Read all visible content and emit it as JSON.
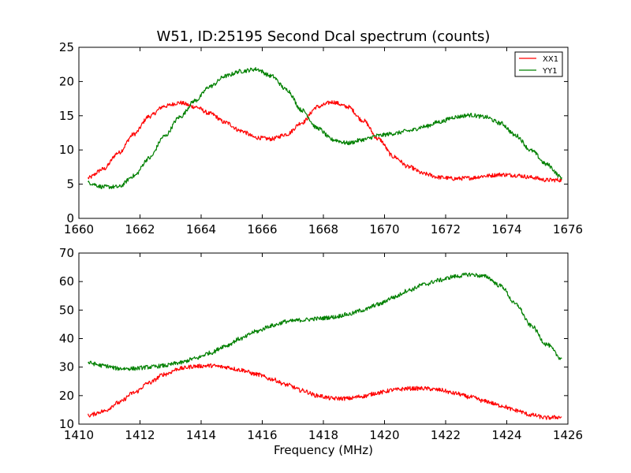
{
  "chart_data": [
    {
      "type": "line",
      "title": "W51, ID:25195 Second Dcal spectrum (counts)",
      "xlabel": "",
      "ylabel": "",
      "xlim": [
        1660,
        1676
      ],
      "ylim": [
        0,
        25
      ],
      "xticks": [
        "1660",
        "1662",
        "1664",
        "1666",
        "1668",
        "1670",
        "1672",
        "1674",
        "1676"
      ],
      "yticks": [
        "0",
        "5",
        "10",
        "15",
        "20",
        "25"
      ],
      "legend": {
        "position": "top-right",
        "entries": [
          "XX1",
          "YY1"
        ]
      },
      "grid": false,
      "series": [
        {
          "name": "XX1",
          "color": "#ff0000",
          "points": [
            [
              1660.3,
              5.9
            ],
            [
              1660.8,
              7.2
            ],
            [
              1661.3,
              9.6
            ],
            [
              1661.8,
              12.3
            ],
            [
              1662.3,
              14.9
            ],
            [
              1662.8,
              16.4
            ],
            [
              1663.3,
              16.9
            ],
            [
              1663.8,
              16.3
            ],
            [
              1664.3,
              15.3
            ],
            [
              1664.8,
              14.0
            ],
            [
              1665.3,
              12.8
            ],
            [
              1665.8,
              11.8
            ],
            [
              1666.3,
              11.6
            ],
            [
              1666.8,
              12.3
            ],
            [
              1667.3,
              14.0
            ],
            [
              1667.8,
              16.3
            ],
            [
              1668.3,
              17.0
            ],
            [
              1668.8,
              16.3
            ],
            [
              1669.3,
              14.3
            ],
            [
              1669.8,
              11.6
            ],
            [
              1670.3,
              9.0
            ],
            [
              1670.8,
              7.5
            ],
            [
              1671.3,
              6.5
            ],
            [
              1671.8,
              6.0
            ],
            [
              1672.3,
              5.8
            ],
            [
              1672.8,
              5.9
            ],
            [
              1673.3,
              6.2
            ],
            [
              1673.8,
              6.4
            ],
            [
              1674.3,
              6.3
            ],
            [
              1674.8,
              6.0
            ],
            [
              1675.3,
              5.6
            ],
            [
              1675.8,
              5.6
            ]
          ]
        },
        {
          "name": "YY1",
          "color": "#008000",
          "points": [
            [
              1660.3,
              5.2
            ],
            [
              1660.8,
              4.6
            ],
            [
              1661.3,
              4.6
            ],
            [
              1661.8,
              6.2
            ],
            [
              1662.3,
              8.8
            ],
            [
              1662.8,
              12.0
            ],
            [
              1663.3,
              14.8
            ],
            [
              1663.8,
              17.2
            ],
            [
              1664.3,
              19.3
            ],
            [
              1664.8,
              20.8
            ],
            [
              1665.3,
              21.5
            ],
            [
              1665.8,
              21.8
            ],
            [
              1666.3,
              20.8
            ],
            [
              1666.8,
              18.8
            ],
            [
              1667.3,
              15.8
            ],
            [
              1667.8,
              13.2
            ],
            [
              1668.3,
              11.5
            ],
            [
              1668.8,
              11.0
            ],
            [
              1669.3,
              11.5
            ],
            [
              1669.8,
              12.1
            ],
            [
              1670.3,
              12.4
            ],
            [
              1670.8,
              12.8
            ],
            [
              1671.3,
              13.4
            ],
            [
              1671.8,
              14.1
            ],
            [
              1672.3,
              14.8
            ],
            [
              1672.8,
              15.1
            ],
            [
              1673.3,
              14.8
            ],
            [
              1673.8,
              13.9
            ],
            [
              1674.3,
              12.1
            ],
            [
              1674.8,
              9.9
            ],
            [
              1675.3,
              7.9
            ],
            [
              1675.8,
              6.0
            ]
          ]
        }
      ]
    },
    {
      "type": "line",
      "title": "",
      "xlabel": "Frequency (MHz)",
      "ylabel": "",
      "xlim": [
        1410,
        1426
      ],
      "ylim": [
        10,
        70
      ],
      "xticks": [
        "1410",
        "1412",
        "1414",
        "1416",
        "1418",
        "1420",
        "1422",
        "1424",
        "1426"
      ],
      "yticks": [
        "10",
        "20",
        "30",
        "40",
        "50",
        "60",
        "70"
      ],
      "grid": false,
      "series": [
        {
          "name": "XX1",
          "color": "#ff0000",
          "points": [
            [
              1410.3,
              13.0
            ],
            [
              1410.8,
              14.5
            ],
            [
              1411.3,
              17.5
            ],
            [
              1411.8,
              21.0
            ],
            [
              1412.3,
              24.5
            ],
            [
              1412.8,
              27.5
            ],
            [
              1413.3,
              29.5
            ],
            [
              1413.8,
              30.3
            ],
            [
              1414.3,
              30.5
            ],
            [
              1414.8,
              30.0
            ],
            [
              1415.3,
              29.0
            ],
            [
              1415.8,
              27.5
            ],
            [
              1416.3,
              25.8
            ],
            [
              1416.8,
              23.8
            ],
            [
              1417.3,
              21.8
            ],
            [
              1417.8,
              20.0
            ],
            [
              1418.3,
              19.0
            ],
            [
              1418.8,
              19.0
            ],
            [
              1419.3,
              19.8
            ],
            [
              1419.8,
              21.0
            ],
            [
              1420.3,
              22.0
            ],
            [
              1420.8,
              22.5
            ],
            [
              1421.3,
              22.5
            ],
            [
              1421.8,
              22.0
            ],
            [
              1422.3,
              20.8
            ],
            [
              1422.8,
              19.5
            ],
            [
              1423.3,
              18.0
            ],
            [
              1423.8,
              16.5
            ],
            [
              1424.3,
              14.8
            ],
            [
              1424.8,
              13.2
            ],
            [
              1425.3,
              12.2
            ],
            [
              1425.8,
              12.5
            ]
          ]
        },
        {
          "name": "YY1",
          "color": "#008000",
          "points": [
            [
              1410.3,
              31.5
            ],
            [
              1410.8,
              30.5
            ],
            [
              1411.3,
              29.5
            ],
            [
              1411.8,
              29.5
            ],
            [
              1412.3,
              30.0
            ],
            [
              1412.8,
              30.5
            ],
            [
              1413.3,
              31.5
            ],
            [
              1413.8,
              33.0
            ],
            [
              1414.3,
              35.0
            ],
            [
              1414.8,
              37.5
            ],
            [
              1415.3,
              40.0
            ],
            [
              1415.8,
              42.5
            ],
            [
              1416.3,
              44.5
            ],
            [
              1416.8,
              46.0
            ],
            [
              1417.3,
              46.5
            ],
            [
              1417.8,
              47.0
            ],
            [
              1418.3,
              47.5
            ],
            [
              1418.8,
              48.5
            ],
            [
              1419.3,
              50.0
            ],
            [
              1419.8,
              52.0
            ],
            [
              1420.3,
              54.5
            ],
            [
              1420.8,
              57.0
            ],
            [
              1421.3,
              59.0
            ],
            [
              1421.8,
              60.5
            ],
            [
              1422.3,
              61.8
            ],
            [
              1422.8,
              62.5
            ],
            [
              1423.3,
              61.8
            ],
            [
              1423.8,
              58.5
            ],
            [
              1424.3,
              52.0
            ],
            [
              1424.8,
              44.5
            ],
            [
              1425.3,
              38.0
            ],
            [
              1425.8,
              33.0
            ]
          ]
        }
      ]
    }
  ]
}
